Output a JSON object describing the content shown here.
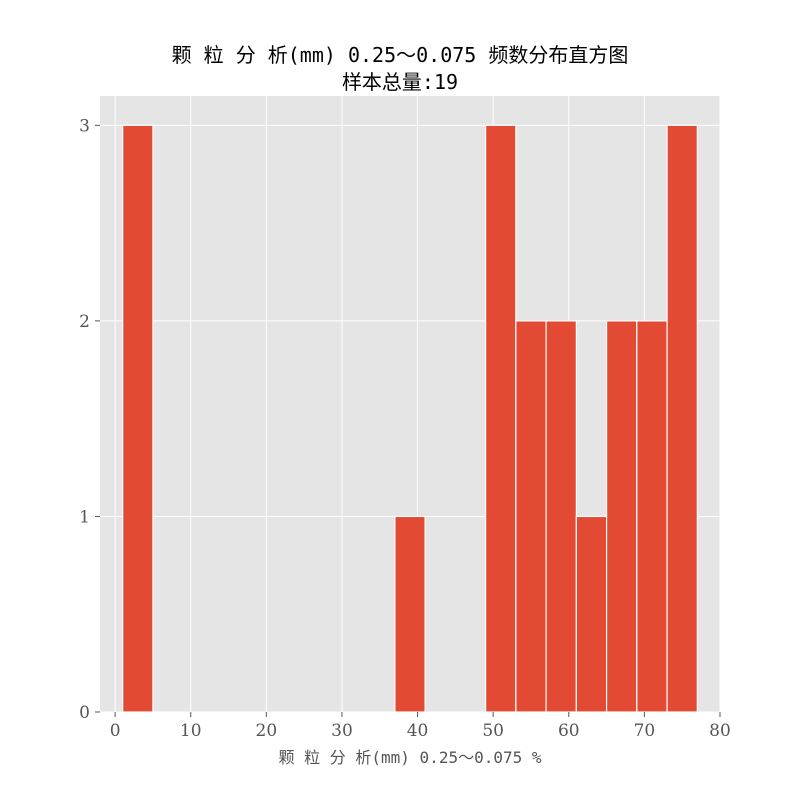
{
  "chart_data": {
    "type": "bar",
    "title": "颗 粒 分 析(mm) 0.25～0.075 频数分布直方图",
    "subtitle": "样本总量:19",
    "xlabel": "颗 粒 分 析(mm) 0.25～0.075 %",
    "ylabel": "",
    "xlim": [
      -2,
      80
    ],
    "ylim": [
      0,
      3.15
    ],
    "xticks": [
      0,
      10,
      20,
      30,
      40,
      50,
      60,
      70,
      80
    ],
    "yticks": [
      0,
      1,
      2,
      3
    ],
    "grid": true,
    "bins": [
      {
        "x0": 1.0,
        "x1": 5.0,
        "count": 3
      },
      {
        "x0": 37.0,
        "x1": 41.0,
        "count": 1
      },
      {
        "x0": 49.0,
        "x1": 53.0,
        "count": 3
      },
      {
        "x0": 53.0,
        "x1": 57.0,
        "count": 2
      },
      {
        "x0": 57.0,
        "x1": 61.0,
        "count": 2
      },
      {
        "x0": 61.0,
        "x1": 65.0,
        "count": 1
      },
      {
        "x0": 65.0,
        "x1": 69.0,
        "count": 2
      },
      {
        "x0": 69.0,
        "x1": 73.0,
        "count": 2
      },
      {
        "x0": 73.0,
        "x1": 77.0,
        "count": 3
      }
    ],
    "bar_color": "#E24A33",
    "background_color": "#E5E5E5",
    "grid_color": "#FFFFFF"
  }
}
